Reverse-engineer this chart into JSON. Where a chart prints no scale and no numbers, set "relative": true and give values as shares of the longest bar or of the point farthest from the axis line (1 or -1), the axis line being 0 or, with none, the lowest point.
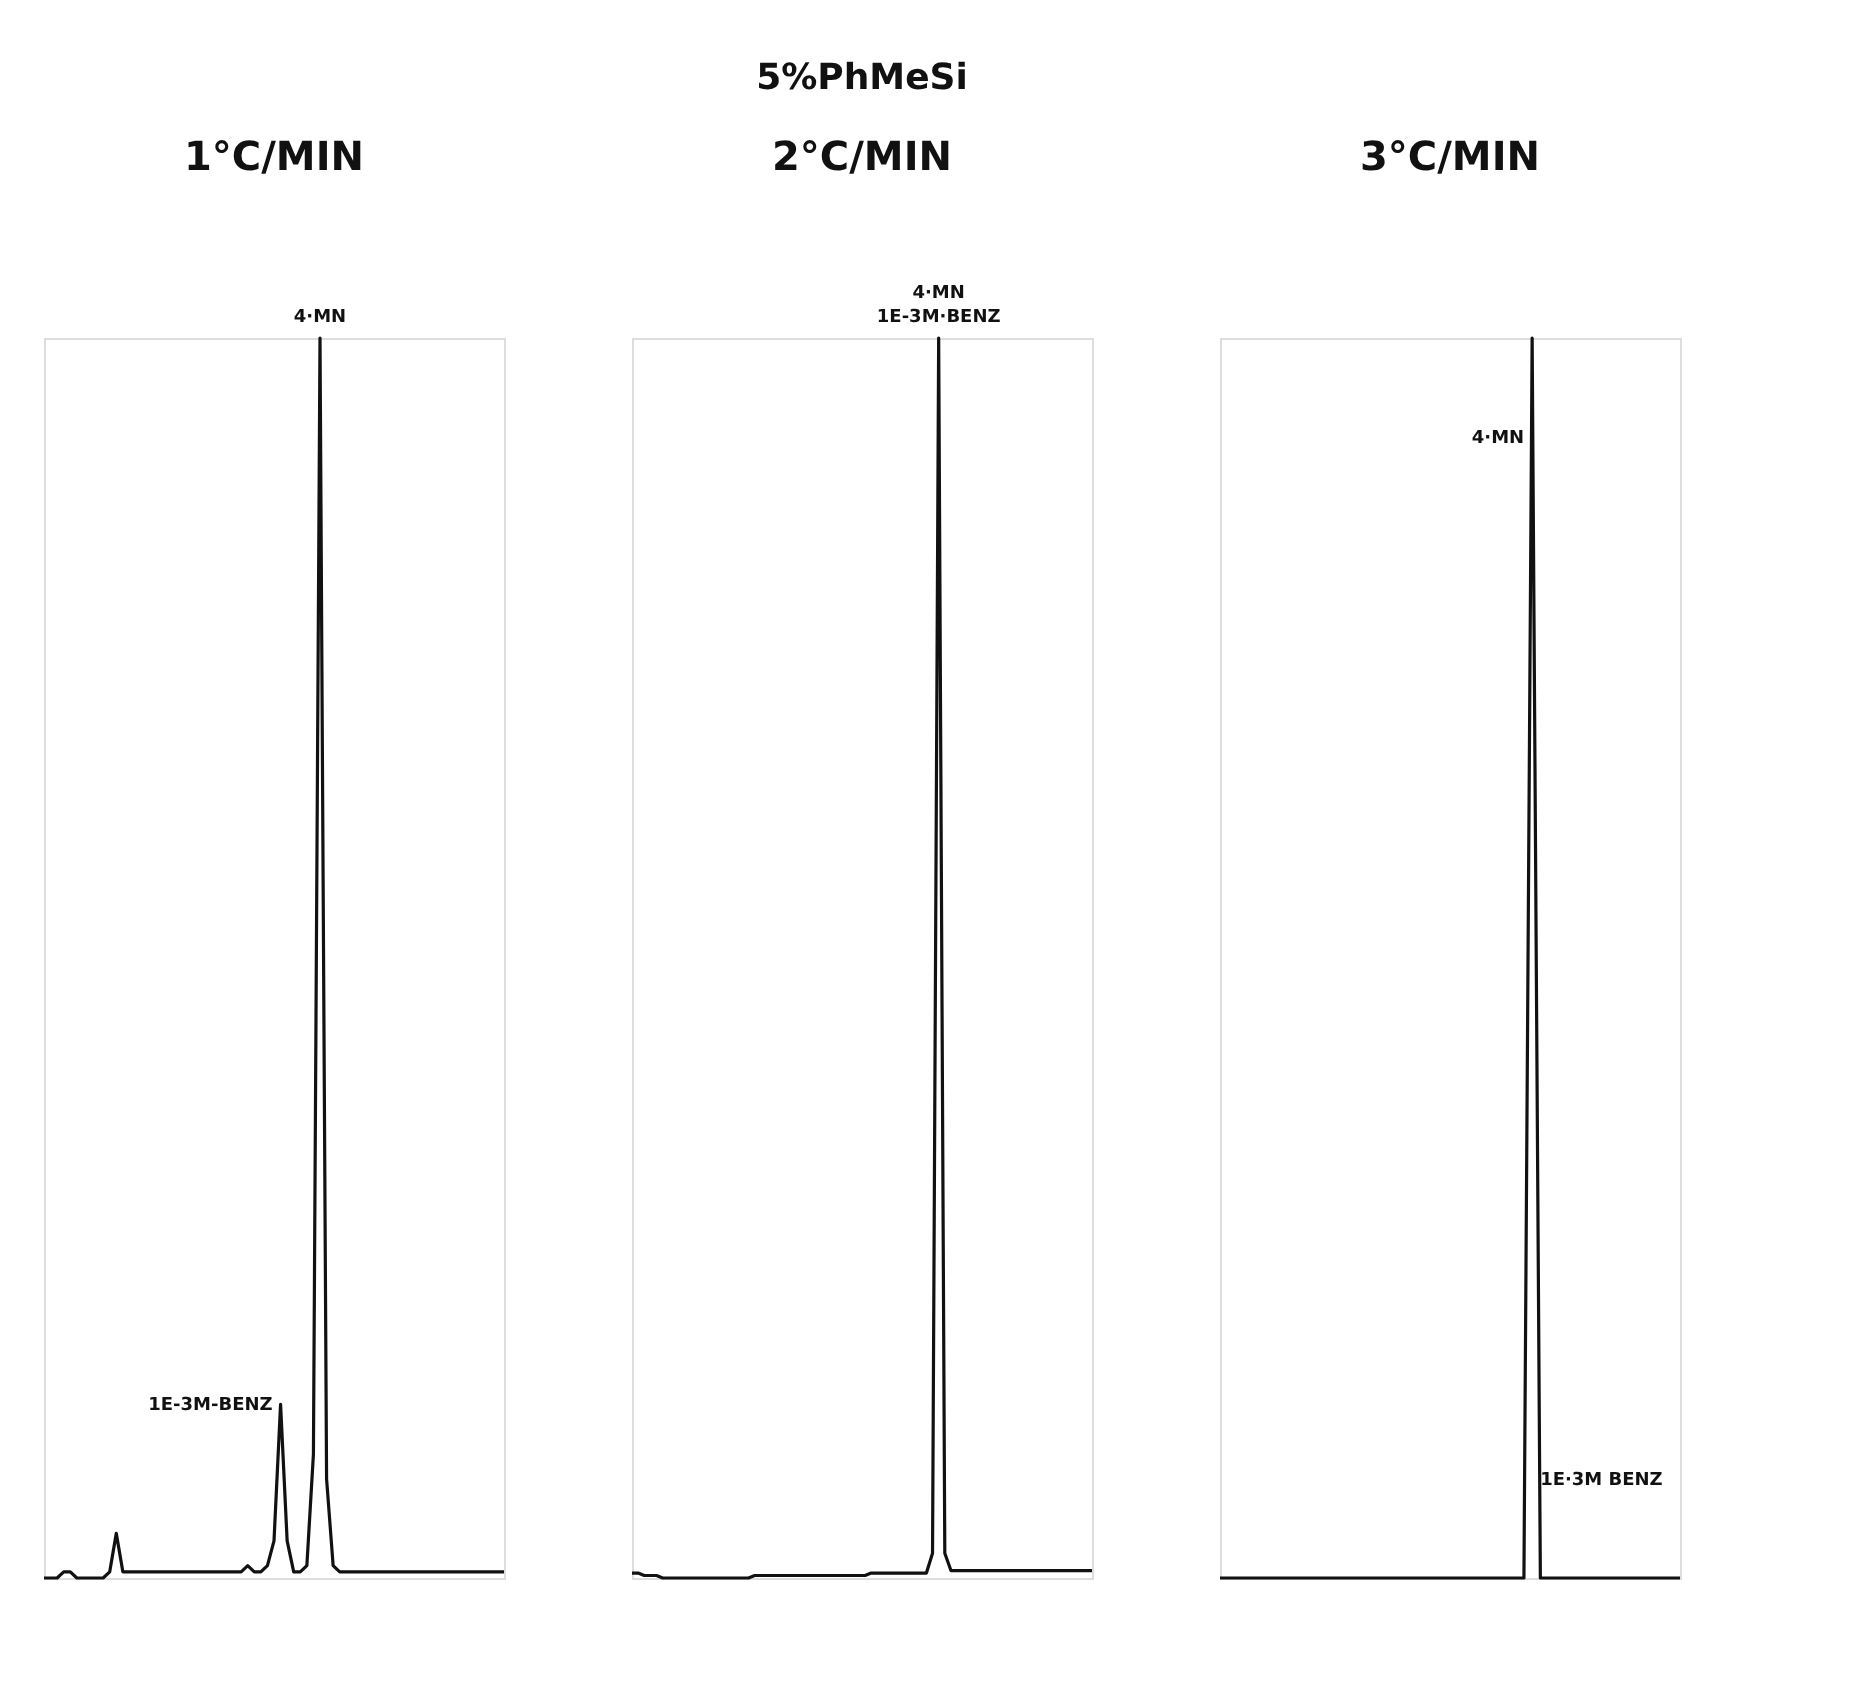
{
  "chart_data": [
    {
      "type": "line",
      "title": "1°C/MIN",
      "relative": true,
      "color": "#111111",
      "categories": [
        null,
        null,
        null,
        null,
        null,
        null,
        null,
        null,
        null,
        null,
        null,
        null,
        null,
        null,
        null,
        null,
        null,
        null,
        null,
        null,
        null,
        null,
        null,
        null,
        null,
        null,
        null,
        null,
        null,
        null,
        null,
        null,
        null,
        null,
        null,
        null,
        null,
        null,
        null,
        null,
        null,
        null,
        null,
        null,
        null,
        null,
        null,
        null,
        null,
        null,
        null,
        null,
        null,
        null,
        null,
        null,
        null,
        null,
        null,
        null,
        null,
        null,
        null,
        null,
        null,
        null,
        null,
        null,
        null,
        null,
        null
      ],
      "values": [
        0,
        0,
        0,
        0.005,
        0.005,
        0,
        0,
        0,
        0,
        0,
        0.005,
        0.036,
        0.005,
        0.005,
        0.005,
        0.005,
        0.005,
        0.005,
        0.005,
        0.005,
        0.005,
        0.005,
        0.005,
        0.005,
        0.005,
        0.005,
        0.005,
        0.005,
        0.005,
        0.005,
        0.005,
        0.01,
        0.005,
        0.005,
        0.01,
        0.03,
        0.14,
        0.03,
        0.005,
        0.005,
        0.01,
        0.1,
        1,
        0.08,
        0.01,
        0.005,
        0.005,
        0.005,
        0.005,
        0.005,
        0.005,
        0.005,
        0.005,
        0.005,
        0.005,
        0.005,
        0.005,
        0.005,
        0.005,
        0.005,
        0.005,
        0.005,
        0.005,
        0.005,
        0.005,
        0.005,
        0.005,
        0.005,
        0.005,
        0.005,
        0.005
      ],
      "annotations": [
        "1E-3M-BENZ",
        "4·MN"
      ]
    },
    {
      "type": "line",
      "title": "2°C/MIN",
      "relative": true,
      "color": "#111111",
      "categories": [
        null,
        null,
        null,
        null,
        null,
        null,
        null,
        null,
        null,
        null,
        null,
        null,
        null,
        null,
        null,
        null,
        null,
        null,
        null,
        null,
        null,
        null,
        null,
        null,
        null,
        null,
        null,
        null,
        null,
        null,
        null,
        null,
        null,
        null,
        null,
        null,
        null,
        null,
        null,
        null,
        null,
        null,
        null,
        null,
        null,
        null,
        null,
        null,
        null,
        null,
        null,
        null,
        null,
        null,
        null,
        null,
        null,
        null,
        null,
        null,
        null,
        null,
        null,
        null,
        null,
        null,
        null,
        null,
        null,
        null,
        null,
        null,
        null,
        null,
        null,
        null
      ],
      "values": [
        0.004,
        0.004,
        0.002,
        0.002,
        0.002,
        0,
        0,
        0,
        0,
        0,
        0,
        0,
        0,
        0,
        0,
        0,
        0,
        0,
        0,
        0,
        0.002,
        0.002,
        0.002,
        0.002,
        0.002,
        0.002,
        0.002,
        0.002,
        0.002,
        0.002,
        0.002,
        0.002,
        0.002,
        0.002,
        0.002,
        0.002,
        0.002,
        0.002,
        0.002,
        0.004,
        0.004,
        0.004,
        0.004,
        0.004,
        0.004,
        0.004,
        0.004,
        0.004,
        0.004,
        0.02,
        1,
        0.02,
        0.006,
        0.006,
        0.006,
        0.006,
        0.006,
        0.006,
        0.006,
        0.006,
        0.006,
        0.006,
        0.006,
        0.006,
        0.006,
        0.006,
        0.006,
        0.006,
        0.006,
        0.006,
        0.006,
        0.006,
        0.006,
        0.006,
        0.006,
        0.006
      ],
      "annotations": [
        "4·MN",
        "1E-3M·BENZ"
      ]
    },
    {
      "type": "line",
      "title": "3°C/MIN",
      "relative": true,
      "color": "#111111",
      "categories": [
        null,
        null,
        null,
        null,
        null,
        null,
        null,
        null,
        null,
        null,
        null,
        null,
        null,
        null,
        null,
        null,
        null,
        null,
        null,
        null,
        null,
        null,
        null,
        null,
        null,
        null,
        null,
        null,
        null,
        null,
        null,
        null,
        null,
        null,
        null,
        null,
        null,
        null,
        null,
        null,
        null,
        null,
        null,
        null,
        null,
        null,
        null,
        null,
        null,
        null,
        null,
        null,
        null,
        null,
        null,
        null,
        null
      ],
      "values": [
        0,
        0,
        0,
        0,
        0,
        0,
        0,
        0,
        0,
        0,
        0,
        0,
        0,
        0,
        0,
        0,
        0,
        0,
        0,
        0,
        0,
        0,
        0,
        0,
        0,
        0,
        0,
        0,
        0,
        0,
        0,
        0,
        0,
        0,
        0,
        0,
        0,
        0,
        1,
        0,
        0,
        0,
        0,
        0,
        0,
        0,
        0,
        0,
        0,
        0,
        0,
        0,
        0,
        0,
        0,
        0,
        0
      ],
      "annotations": [
        "4·MN",
        "1E·3M BENZ"
      ]
    },
    {
      "type": "other",
      "title": "5%PhMeSi"
    }
  ]
}
